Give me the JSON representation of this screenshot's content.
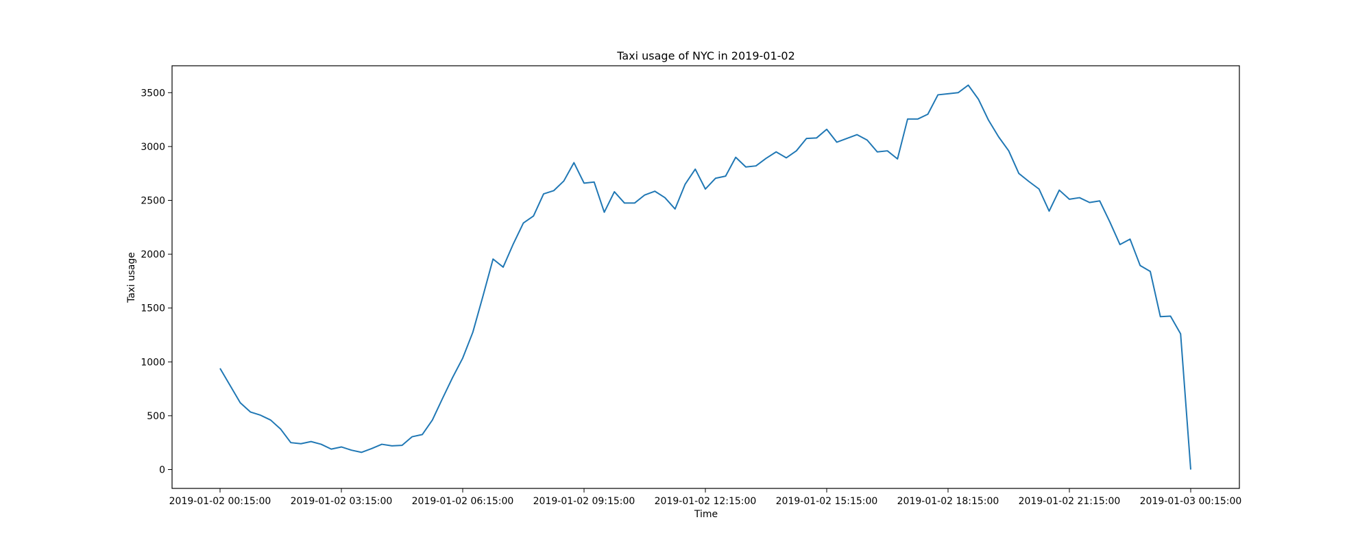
{
  "chart_data": {
    "type": "line",
    "title": "Taxi usage of NYC in 2019-01-02",
    "xlabel": "Time",
    "ylabel": "Taxi usage",
    "x_start": "2019-01-02 00:15:00",
    "x_step_minutes": 15,
    "x_ticks": [
      "2019-01-02 00:15:00",
      "2019-01-02 03:15:00",
      "2019-01-02 06:15:00",
      "2019-01-02 09:15:00",
      "2019-01-02 12:15:00",
      "2019-01-02 15:15:00",
      "2019-01-02 18:15:00",
      "2019-01-02 21:15:00",
      "2019-01-03 00:15:00"
    ],
    "y_ticks": [
      0,
      500,
      1000,
      1500,
      2000,
      2500,
      3000,
      3500
    ],
    "ylim": [
      -175,
      3750
    ],
    "grid": false,
    "line_color": "#1f77b4",
    "series": [
      {
        "values": [
          940,
          780,
          620,
          535,
          505,
          460,
          375,
          250,
          240,
          260,
          235,
          190,
          210,
          180,
          160,
          195,
          235,
          220,
          225,
          305,
          325,
          460,
          660,
          855,
          1035,
          1275,
          1610,
          1955,
          1880,
          2095,
          2290,
          2355,
          2560,
          2590,
          2680,
          2850,
          2660,
          2670,
          2390,
          2580,
          2475,
          2475,
          2550,
          2585,
          2525,
          2420,
          2650,
          2790,
          2605,
          2705,
          2725,
          2900,
          2810,
          2820,
          2890,
          2950,
          2895,
          2960,
          3075,
          3080,
          3160,
          3040,
          3075,
          3110,
          3060,
          2950,
          2960,
          2885,
          3255,
          3255,
          3300,
          3480,
          3490,
          3500,
          3570,
          3440,
          3245,
          3090,
          2960,
          2750,
          2675,
          2605,
          2400,
          2595,
          2510,
          2525,
          2480,
          2495,
          2300,
          2090,
          2140,
          1895,
          1840,
          1420,
          1425,
          1260,
          0
        ]
      }
    ]
  }
}
